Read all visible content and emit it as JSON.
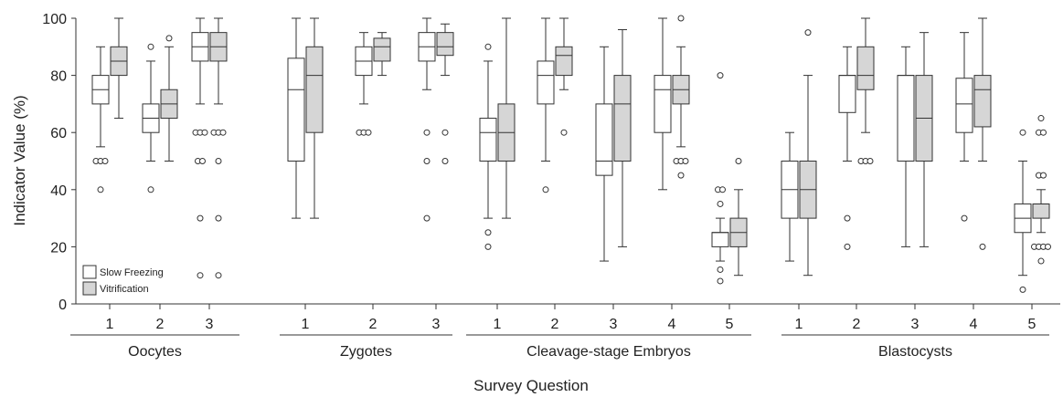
{
  "chart_data": {
    "type": "box",
    "ylabel": "Indicator Value (%)",
    "xlabel": "Survey Question",
    "ylim": [
      0,
      100
    ],
    "yticks": [
      0,
      20,
      40,
      60,
      80,
      100
    ],
    "grid": false,
    "legend_position": "bottom-left",
    "colors": {
      "slow_freezing": "#ffffff",
      "vitrification": "#d6d6d6",
      "stroke": "#333333"
    },
    "series": [
      {
        "name": "Slow Freezing"
      },
      {
        "name": "Vitrification"
      }
    ],
    "groups": [
      {
        "label": "Oocytes",
        "questions": [
          {
            "label": "1",
            "boxes": [
              {
                "min": 55,
                "q1": 70,
                "median": 75,
                "q3": 80,
                "max": 90,
                "outliers": [
                  50,
                  50,
                  50,
                  40
                ]
              },
              {
                "min": 65,
                "q1": 80,
                "median": 85,
                "q3": 90,
                "max": 100,
                "outliers": []
              }
            ]
          },
          {
            "label": "2",
            "boxes": [
              {
                "min": 50,
                "q1": 60,
                "median": 65,
                "q3": 70,
                "max": 85,
                "outliers": [
                  90,
                  40
                ]
              },
              {
                "min": 50,
                "q1": 65,
                "median": 70,
                "q3": 75,
                "max": 90,
                "outliers": [
                  93
                ]
              }
            ]
          },
          {
            "label": "3",
            "boxes": [
              {
                "min": 70,
                "q1": 85,
                "median": 90,
                "q3": 95,
                "max": 100,
                "outliers": [
                  60,
                  60,
                  60,
                  50,
                  50,
                  30,
                  10
                ]
              },
              {
                "min": 70,
                "q1": 85,
                "median": 90,
                "q3": 95,
                "max": 100,
                "outliers": [
                  60,
                  60,
                  60,
                  50,
                  30,
                  10
                ]
              }
            ]
          }
        ]
      },
      {
        "label": "Zygotes",
        "questions": [
          {
            "label": "1",
            "boxes": [
              {
                "min": 30,
                "q1": 50,
                "median": 75,
                "q3": 86,
                "max": 100,
                "outliers": []
              },
              {
                "min": 30,
                "q1": 60,
                "median": 80,
                "q3": 90,
                "max": 100,
                "outliers": []
              }
            ]
          },
          {
            "label": "2",
            "boxes": [
              {
                "min": 70,
                "q1": 80,
                "median": 85,
                "q3": 90,
                "max": 95,
                "outliers": [
                  60,
                  60,
                  60
                ]
              },
              {
                "min": 80,
                "q1": 85,
                "median": 90,
                "q3": 93,
                "max": 95,
                "outliers": []
              }
            ]
          },
          {
            "label": "3",
            "boxes": [
              {
                "min": 75,
                "q1": 85,
                "median": 90,
                "q3": 95,
                "max": 100,
                "outliers": [
                  60,
                  50,
                  30
                ]
              },
              {
                "min": 80,
                "q1": 87,
                "median": 90,
                "q3": 95,
                "max": 98,
                "outliers": [
                  60,
                  50
                ]
              }
            ]
          }
        ]
      },
      {
        "label": "Cleavage-stage Embryos",
        "questions": [
          {
            "label": "1",
            "boxes": [
              {
                "min": 30,
                "q1": 50,
                "median": 60,
                "q3": 65,
                "max": 85,
                "outliers": [
                  90,
                  25,
                  20
                ]
              },
              {
                "min": 30,
                "q1": 50,
                "median": 60,
                "q3": 70,
                "max": 100,
                "outliers": []
              }
            ]
          },
          {
            "label": "2",
            "boxes": [
              {
                "min": 50,
                "q1": 70,
                "median": 80,
                "q3": 85,
                "max": 100,
                "outliers": [
                  40
                ]
              },
              {
                "min": 75,
                "q1": 80,
                "median": 87,
                "q3": 90,
                "max": 100,
                "outliers": [
                  60
                ]
              }
            ]
          },
          {
            "label": "3",
            "boxes": [
              {
                "min": 15,
                "q1": 45,
                "median": 50,
                "q3": 70,
                "max": 90,
                "outliers": []
              },
              {
                "min": 20,
                "q1": 50,
                "median": 70,
                "q3": 80,
                "max": 96,
                "outliers": []
              }
            ]
          },
          {
            "label": "4",
            "boxes": [
              {
                "min": 40,
                "q1": 60,
                "median": 75,
                "q3": 80,
                "max": 100,
                "outliers": []
              },
              {
                "min": 55,
                "q1": 70,
                "median": 75,
                "q3": 80,
                "max": 90,
                "outliers": [
                  100,
                  50,
                  50,
                  50,
                  45
                ]
              }
            ]
          },
          {
            "label": "5",
            "boxes": [
              {
                "min": 15,
                "q1": 20,
                "median": 25,
                "q3": 25,
                "max": 30,
                "outliers": [
                  80,
                  40,
                  40,
                  35,
                  12,
                  8
                ]
              },
              {
                "min": 10,
                "q1": 20,
                "median": 25,
                "q3": 30,
                "max": 40,
                "outliers": [
                  50
                ]
              }
            ]
          }
        ]
      },
      {
        "label": "Blastocysts",
        "questions": [
          {
            "label": "1",
            "boxes": [
              {
                "min": 15,
                "q1": 30,
                "median": 40,
                "q3": 50,
                "max": 60,
                "outliers": []
              },
              {
                "min": 10,
                "q1": 30,
                "median": 40,
                "q3": 50,
                "max": 80,
                "outliers": [
                  95
                ]
              }
            ]
          },
          {
            "label": "2",
            "boxes": [
              {
                "min": 50,
                "q1": 67,
                "median": 80,
                "q3": 80,
                "max": 90,
                "outliers": [
                  30,
                  20
                ]
              },
              {
                "min": 60,
                "q1": 75,
                "median": 80,
                "q3": 90,
                "max": 100,
                "outliers": [
                  50,
                  50,
                  50
                ]
              }
            ]
          },
          {
            "label": "3",
            "boxes": [
              {
                "min": 20,
                "q1": 50,
                "median": 80,
                "q3": 80,
                "max": 90,
                "outliers": []
              },
              {
                "min": 20,
                "q1": 50,
                "median": 65,
                "q3": 80,
                "max": 95,
                "outliers": []
              }
            ]
          },
          {
            "label": "4",
            "boxes": [
              {
                "min": 50,
                "q1": 60,
                "median": 70,
                "q3": 79,
                "max": 95,
                "outliers": [
                  30
                ]
              },
              {
                "min": 50,
                "q1": 62,
                "median": 75,
                "q3": 80,
                "max": 100,
                "outliers": [
                  20
                ]
              }
            ]
          },
          {
            "label": "5",
            "boxes": [
              {
                "min": 10,
                "q1": 25,
                "median": 30,
                "q3": 35,
                "max": 50,
                "outliers": [
                  60,
                  5
                ]
              },
              {
                "min": 25,
                "q1": 30,
                "median": 35,
                "q3": 35,
                "max": 40,
                "outliers": [
                  65,
                  60,
                  60,
                  45,
                  45,
                  20,
                  20,
                  20,
                  20,
                  15
                ]
              }
            ]
          }
        ]
      }
    ]
  }
}
